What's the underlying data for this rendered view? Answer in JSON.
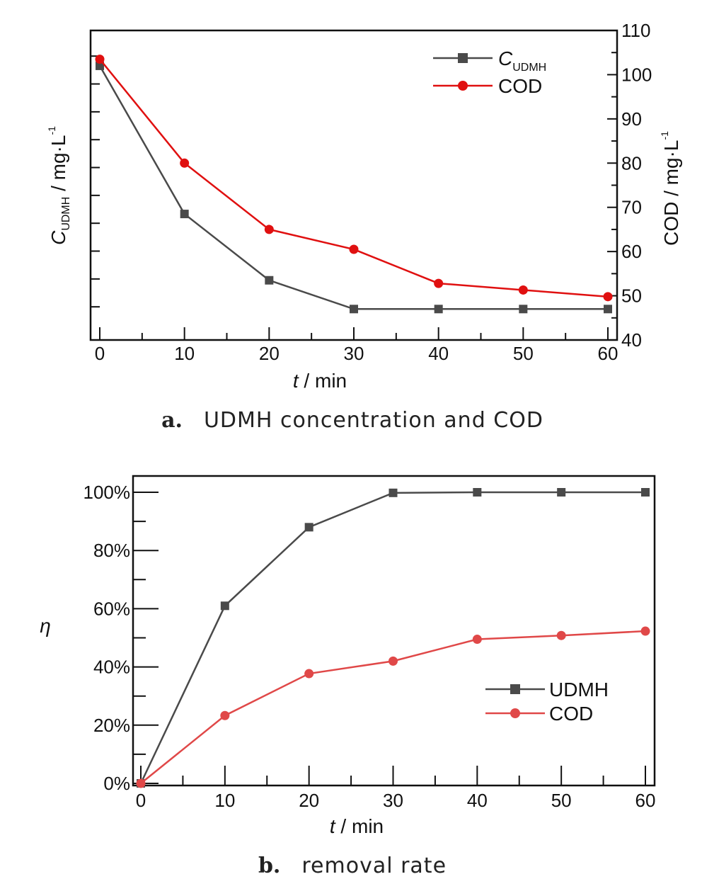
{
  "chart_data": [
    {
      "type": "line",
      "panel": "a",
      "caption_letter": "a.",
      "caption": "UDMH concentration and COD",
      "x": [
        0,
        10,
        20,
        30,
        40,
        50,
        60
      ],
      "xlabel_italic": "t",
      "xlabel_rest": " / min",
      "xlim": [
        0,
        60
      ],
      "xticks": [
        "0",
        "10",
        "20",
        "30",
        "40",
        "50",
        "60"
      ],
      "y_left_label_italic": "C",
      "y_left_label_sub": "UDMH",
      "y_left_label_rest": " / mg·L",
      "y_left_label_sup": "-1",
      "y_right_label": "COD / mg·L",
      "y_right_label_sup": "-1",
      "y_right_lim": [
        40,
        110
      ],
      "y_right_ticks": [
        "40",
        "50",
        "60",
        "70",
        "80",
        "90",
        "100",
        "110"
      ],
      "legend_position": "top-right",
      "series": [
        {
          "name_italic": "C",
          "name_sub": "UDMH",
          "axis": "left",
          "marker": "square",
          "color": "#4a4a4a",
          "values_relative_to_right_axis": [
            102,
            68.5,
            53.5,
            47,
            47,
            47,
            47
          ]
        },
        {
          "name": "COD",
          "axis": "right",
          "marker": "circle",
          "color": "#e01010",
          "values": [
            103.5,
            80,
            65,
            60.5,
            52.8,
            51.3,
            49.8
          ]
        }
      ]
    },
    {
      "type": "line",
      "panel": "b",
      "caption_letter": "b.",
      "caption": "removal rate",
      "x": [
        0,
        10,
        20,
        30,
        40,
        50,
        60
      ],
      "xlabel_italic": "t",
      "xlabel_rest": " / min",
      "xlim": [
        0,
        60
      ],
      "xticks": [
        "0",
        "10",
        "20",
        "30",
        "40",
        "50",
        "60"
      ],
      "ylabel": "η",
      "ylim": [
        0,
        100
      ],
      "yticks": [
        "0%",
        "20%",
        "40%",
        "60%",
        "80%",
        "100%"
      ],
      "legend_position": "bottom-right",
      "series": [
        {
          "name": "UDMH",
          "marker": "square",
          "color": "#4a4a4a",
          "values": [
            0,
            61,
            88,
            99.8,
            100,
            100,
            100
          ]
        },
        {
          "name": "COD",
          "marker": "circle",
          "color": "#e04848",
          "values": [
            0,
            23.3,
            37.7,
            42,
            49.5,
            50.8,
            52.3
          ]
        }
      ]
    }
  ]
}
